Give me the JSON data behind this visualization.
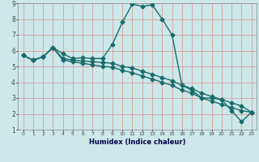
{
  "xlabel": "Humidex (Indice chaleur)",
  "bg_color": "#cce8e8",
  "grid_color": "#d8a0a0",
  "line_color": "#1a6b6b",
  "xlim": [
    -0.5,
    23.5
  ],
  "ylim": [
    1,
    9
  ],
  "xticks": [
    0,
    1,
    2,
    3,
    4,
    5,
    6,
    7,
    8,
    9,
    10,
    11,
    12,
    13,
    14,
    15,
    16,
    17,
    18,
    19,
    20,
    21,
    22,
    23
  ],
  "yticks": [
    1,
    2,
    3,
    4,
    5,
    6,
    7,
    8,
    9
  ],
  "line1_x": [
    0,
    1,
    2,
    3,
    4,
    5,
    6,
    7,
    8,
    9,
    10,
    11,
    12,
    13,
    14,
    15,
    16,
    17,
    18,
    19,
    20,
    21,
    22,
    23
  ],
  "line1_y": [
    5.7,
    5.4,
    5.6,
    6.2,
    5.8,
    5.5,
    5.55,
    5.5,
    5.5,
    6.4,
    7.8,
    8.95,
    8.8,
    8.9,
    8.0,
    7.0,
    3.8,
    3.5,
    3.0,
    3.0,
    2.9,
    2.2,
    1.5,
    2.1
  ],
  "line2_x": [
    0,
    1,
    2,
    3,
    4,
    5,
    6,
    7,
    8,
    9,
    10,
    11,
    12,
    13,
    14,
    15,
    16,
    17,
    18,
    19,
    20,
    21,
    22,
    23
  ],
  "line2_y": [
    5.7,
    5.4,
    5.6,
    6.2,
    5.5,
    5.4,
    5.35,
    5.3,
    5.25,
    5.2,
    5.0,
    4.9,
    4.7,
    4.5,
    4.3,
    4.1,
    3.8,
    3.6,
    3.3,
    3.1,
    2.9,
    2.7,
    2.5,
    2.1
  ],
  "line3_x": [
    0,
    1,
    2,
    3,
    4,
    5,
    6,
    7,
    8,
    9,
    10,
    11,
    12,
    13,
    14,
    15,
    16,
    17,
    18,
    19,
    20,
    21,
    22,
    23
  ],
  "line3_y": [
    5.7,
    5.4,
    5.6,
    6.2,
    5.4,
    5.3,
    5.2,
    5.1,
    5.0,
    4.95,
    4.75,
    4.6,
    4.4,
    4.2,
    4.0,
    3.8,
    3.5,
    3.3,
    3.0,
    2.8,
    2.6,
    2.4,
    2.2,
    2.1
  ],
  "marker": "D",
  "markersize": 2.5,
  "linewidth": 1.0
}
